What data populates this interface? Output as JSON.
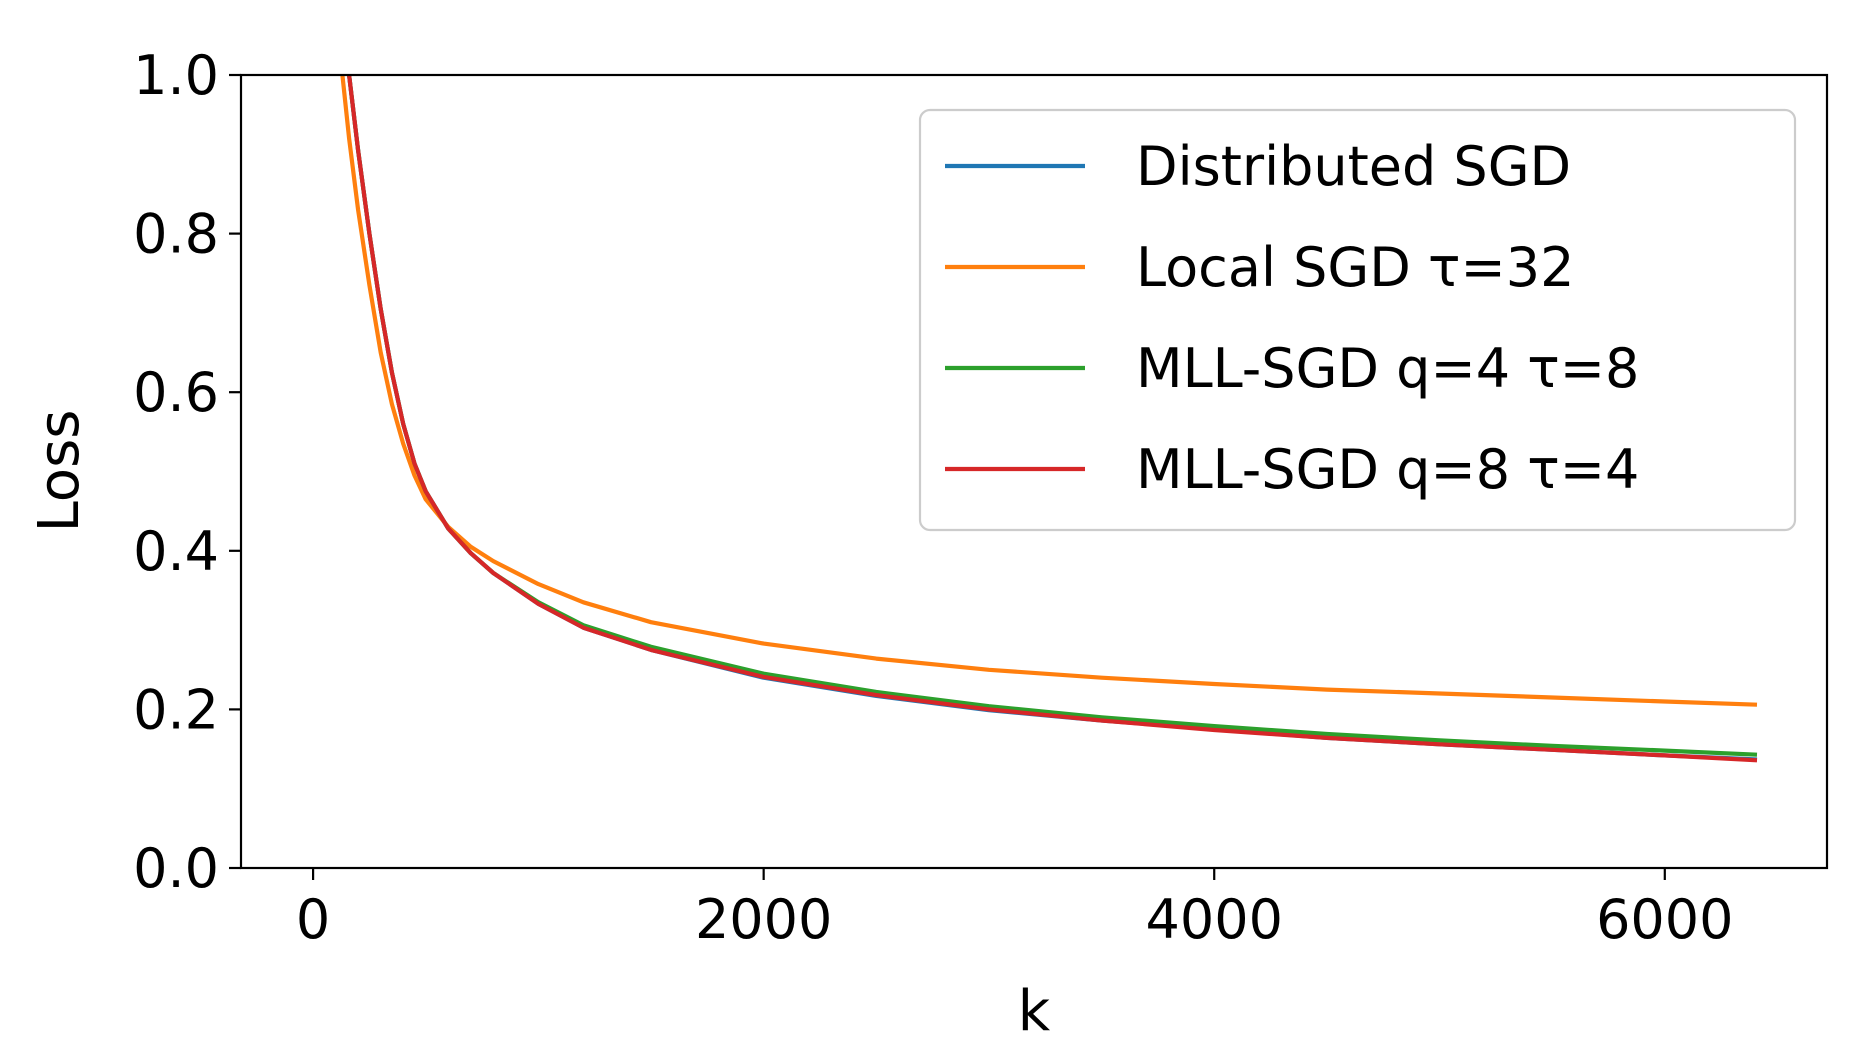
{
  "chart_data": {
    "type": "line",
    "title": "",
    "xlabel": "k",
    "ylabel": "Loss",
    "xlim": [
      -320,
      6720
    ],
    "ylim": [
      0.0,
      1.0
    ],
    "xticks": [
      0,
      2000,
      4000,
      6000
    ],
    "xtick_labels": [
      "0",
      "2000",
      "4000",
      "6000"
    ],
    "yticks": [
      0.0,
      0.2,
      0.4,
      0.6,
      0.8,
      1.0
    ],
    "ytick_labels": [
      "0.0",
      "0.2",
      "0.4",
      "0.6",
      "0.8",
      "1.0"
    ],
    "grid": false,
    "legend_position": "upper right",
    "series": [
      {
        "name": "Distributed SGD",
        "color": "#1f77b4",
        "x": [
          160,
          200,
          250,
          300,
          350,
          400,
          450,
          500,
          600,
          700,
          800,
          1000,
          1200,
          1500,
          2000,
          2500,
          3000,
          3500,
          4000,
          4500,
          5000,
          5500,
          6000,
          6400
        ],
        "y": [
          1.0,
          0.905,
          0.8,
          0.705,
          0.625,
          0.56,
          0.51,
          0.475,
          0.428,
          0.397,
          0.372,
          0.333,
          0.303,
          0.275,
          0.24,
          0.217,
          0.199,
          0.186,
          0.175,
          0.164,
          0.156,
          0.149,
          0.142,
          0.137
        ]
      },
      {
        "name": "Local SGD τ=32",
        "color": "#ff7f0e",
        "x": [
          130,
          160,
          200,
          250,
          300,
          350,
          400,
          450,
          500,
          600,
          700,
          800,
          1000,
          1200,
          1500,
          2000,
          2500,
          3000,
          3500,
          4000,
          4500,
          5000,
          5500,
          6000,
          6400
        ],
        "y": [
          1.0,
          0.92,
          0.83,
          0.735,
          0.65,
          0.585,
          0.535,
          0.495,
          0.465,
          0.43,
          0.405,
          0.387,
          0.358,
          0.335,
          0.31,
          0.283,
          0.264,
          0.25,
          0.24,
          0.232,
          0.225,
          0.22,
          0.215,
          0.21,
          0.206
        ]
      },
      {
        "name": "MLL-SGD q=4 τ=8",
        "color": "#2ca02c",
        "x": [
          160,
          200,
          250,
          300,
          350,
          400,
          450,
          500,
          600,
          700,
          800,
          1000,
          1200,
          1500,
          2000,
          2500,
          3000,
          3500,
          4000,
          4500,
          5000,
          5500,
          6000,
          6400
        ],
        "y": [
          1.0,
          0.905,
          0.8,
          0.705,
          0.625,
          0.56,
          0.51,
          0.475,
          0.428,
          0.397,
          0.372,
          0.335,
          0.306,
          0.279,
          0.245,
          0.222,
          0.204,
          0.19,
          0.179,
          0.169,
          0.161,
          0.154,
          0.148,
          0.143
        ]
      },
      {
        "name": "MLL-SGD q=8 τ=4",
        "color": "#d62728",
        "x": [
          160,
          200,
          250,
          300,
          350,
          400,
          450,
          500,
          600,
          700,
          800,
          1000,
          1200,
          1500,
          2000,
          2500,
          3000,
          3500,
          4000,
          4500,
          5000,
          5500,
          6000,
          6400
        ],
        "y": [
          1.0,
          0.905,
          0.8,
          0.705,
          0.625,
          0.56,
          0.51,
          0.475,
          0.428,
          0.397,
          0.372,
          0.333,
          0.303,
          0.275,
          0.241,
          0.218,
          0.2,
          0.186,
          0.174,
          0.164,
          0.156,
          0.149,
          0.142,
          0.136
        ]
      }
    ]
  }
}
